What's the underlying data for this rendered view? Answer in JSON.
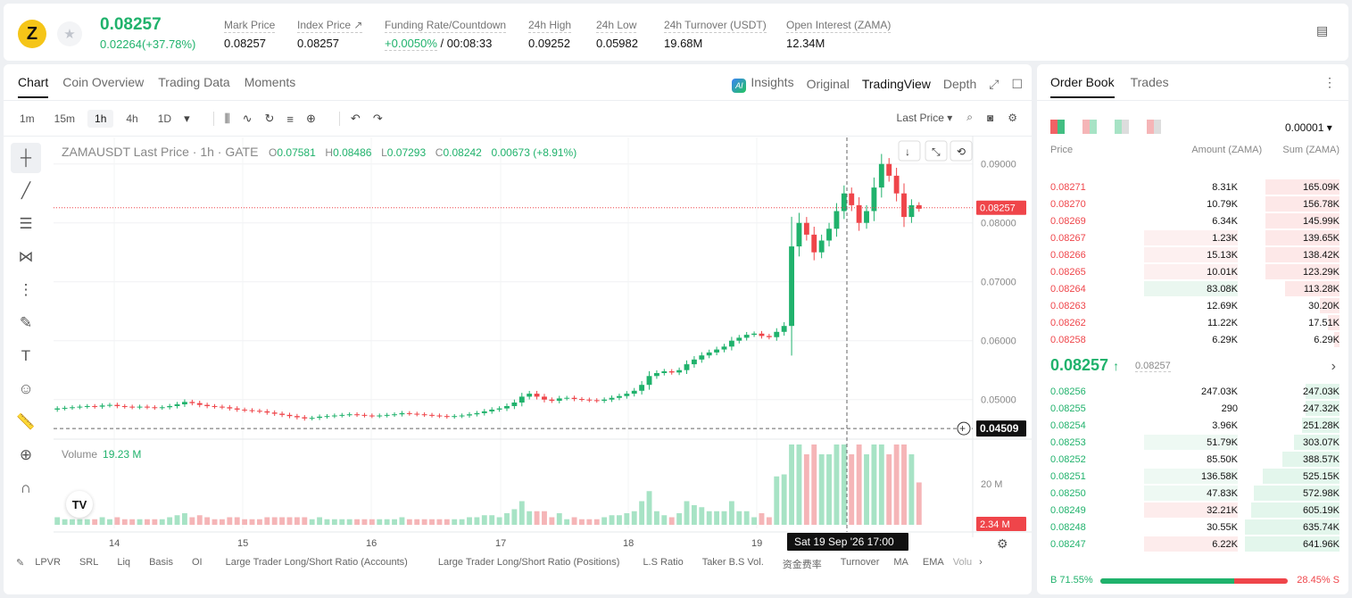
{
  "header": {
    "logo_letter": "Z",
    "last_price": "0.08257",
    "change": "0.02264(+37.78%)",
    "stats": [
      {
        "label": "Mark Price",
        "value": "0.08257"
      },
      {
        "label": "Index Price ↗",
        "value": "0.08257"
      },
      {
        "label": "Funding Rate/Countdown",
        "value_green": "+0.0050%",
        "value": " / 00:08:33"
      },
      {
        "label": "24h High",
        "value": "0.09252"
      },
      {
        "label": "24h Low",
        "value": "0.05982"
      },
      {
        "label": "24h Turnover (USDT)",
        "value": "19.68M"
      },
      {
        "label": "Open Interest (ZAMA)",
        "value": "12.34M"
      }
    ]
  },
  "chart_tabs": [
    "Chart",
    "Coin Overview",
    "Trading Data",
    "Moments"
  ],
  "view_options": [
    "Insights",
    "Original",
    "TradingView",
    "Depth"
  ],
  "timeframes": [
    "1m",
    "15m",
    "1h",
    "4h",
    "1D"
  ],
  "price_type": "Last Price",
  "legend": {
    "title": "ZAMAUSDT Last Price · 1h · GATE",
    "o": "0.07581",
    "h": "0.08486",
    "l": "0.07293",
    "c": "0.08242",
    "chg": "0.00673 (+8.91%)"
  },
  "volume": {
    "label": "Volume",
    "value": "19.23 M",
    "axis_label": "20 M",
    "last_tag": "2.34 M"
  },
  "crosshair": {
    "price": "0.04509",
    "time": "Sat 19 Sep '26    17:00"
  },
  "current_price_tag": "0.08257",
  "bottom_indicators": [
    "LPVR",
    "SRL",
    "Liq",
    "Basis",
    "OI",
    "Large Trader Long/Short Ratio (Accounts)",
    "Large Trader Long/Short Ratio (Positions)",
    "L.S Ratio",
    "Taker B.S Vol.",
    "资金费率",
    "Turnover",
    "MA",
    "EMA",
    "Volu"
  ],
  "chart_data": {
    "type": "candlestick",
    "title": "ZAMAUSDT Last Price · 1h · GATE",
    "x_ticks": [
      "14",
      "15",
      "16",
      "17",
      "18",
      "19"
    ],
    "y_ticks": [
      "0.09000",
      "0.08000",
      "0.07000",
      "0.06000",
      "0.05000"
    ],
    "ylim": [
      0.0445,
      0.0945
    ],
    "close_series": [
      0.0485,
      0.0486,
      0.0487,
      0.0488,
      0.0489,
      0.0488,
      0.049,
      0.0491,
      0.0489,
      0.0488,
      0.0487,
      0.0488,
      0.0487,
      0.0486,
      0.0487,
      0.0489,
      0.0492,
      0.0496,
      0.0494,
      0.0491,
      0.0489,
      0.0488,
      0.0487,
      0.0485,
      0.0483,
      0.0482,
      0.0481,
      0.048,
      0.0478,
      0.0476,
      0.0474,
      0.0472,
      0.047,
      0.0468,
      0.0469,
      0.0471,
      0.0472,
      0.0473,
      0.0474,
      0.0475,
      0.0474,
      0.0473,
      0.0472,
      0.0473,
      0.0474,
      0.0475,
      0.0477,
      0.0476,
      0.0475,
      0.0474,
      0.0473,
      0.0472,
      0.0471,
      0.0472,
      0.0473,
      0.0475,
      0.0477,
      0.048,
      0.0483,
      0.0485,
      0.0489,
      0.0495,
      0.0505,
      0.051,
      0.0505,
      0.05,
      0.0498,
      0.0502,
      0.0503,
      0.0501,
      0.05,
      0.0499,
      0.0498,
      0.05,
      0.0503,
      0.0506,
      0.051,
      0.0515,
      0.0525,
      0.054,
      0.0545,
      0.0548,
      0.0546,
      0.055,
      0.056,
      0.0568,
      0.0575,
      0.058,
      0.0585,
      0.059,
      0.06,
      0.0605,
      0.061,
      0.0612,
      0.0608,
      0.0606,
      0.0615,
      0.0625,
      0.076,
      0.08,
      0.078,
      0.075,
      0.077,
      0.079,
      0.082,
      0.085,
      0.083,
      0.08,
      0.082,
      0.086,
      0.09,
      0.088,
      0.085,
      0.081,
      0.083,
      0.0824
    ]
  },
  "order_book": {
    "tabs": [
      "Order Book",
      "Trades"
    ],
    "precision": "0.00001",
    "columns": [
      "Price",
      "Amount (ZAMA)",
      "Sum (ZAMA)"
    ],
    "asks": [
      {
        "price": "0.08271",
        "amount": "8.31K",
        "sum": "165.09K",
        "sum_pct": 26
      },
      {
        "price": "0.08270",
        "amount": "10.79K",
        "sum": "156.78K",
        "sum_pct": 26
      },
      {
        "price": "0.08269",
        "amount": "6.34K",
        "sum": "145.99K",
        "sum_pct": 26
      },
      {
        "price": "0.08267",
        "amount": "1.23K",
        "sum": "139.65K",
        "sum_pct": 26,
        "amount_pct": 25
      },
      {
        "price": "0.08266",
        "amount": "15.13K",
        "sum": "138.42K",
        "sum_pct": 26,
        "amount_pct": 25
      },
      {
        "price": "0.08265",
        "amount": "10.01K",
        "sum": "123.29K",
        "sum_pct": 26,
        "amount_pct": 25
      },
      {
        "price": "0.08264",
        "amount": "83.08K",
        "sum": "113.28K",
        "sum_pct": 19,
        "amount_pct": 35,
        "amount_green": true
      },
      {
        "price": "0.08263",
        "amount": "12.69K",
        "sum": "30.20K",
        "sum_pct": 7
      },
      {
        "price": "0.08262",
        "amount": "11.22K",
        "sum": "17.51K",
        "sum_pct": 4
      },
      {
        "price": "0.08258",
        "amount": "6.29K",
        "sum": "6.29K",
        "sum_pct": 2
      }
    ],
    "mid_price": "0.08257",
    "mid_arrow": "↑",
    "mid_sub": "0.08257",
    "bids": [
      {
        "price": "0.08256",
        "amount": "247.03K",
        "sum": "247.03K",
        "sum_pct": 12
      },
      {
        "price": "0.08255",
        "amount": "290",
        "sum": "247.32K",
        "sum_pct": 12
      },
      {
        "price": "0.08254",
        "amount": "3.96K",
        "sum": "251.28K",
        "sum_pct": 13
      },
      {
        "price": "0.08253",
        "amount": "51.79K",
        "sum": "303.07K",
        "sum_pct": 16,
        "amount_pct": 35
      },
      {
        "price": "0.08252",
        "amount": "85.50K",
        "sum": "388.57K",
        "sum_pct": 20
      },
      {
        "price": "0.08251",
        "amount": "136.58K",
        "sum": "525.15K",
        "sum_pct": 27,
        "amount_pct": 35
      },
      {
        "price": "0.08250",
        "amount": "47.83K",
        "sum": "572.98K",
        "sum_pct": 30,
        "amount_pct": 35
      },
      {
        "price": "0.08249",
        "amount": "32.21K",
        "sum": "605.19K",
        "sum_pct": 31,
        "amount_pct": 35,
        "amount_red": true
      },
      {
        "price": "0.08248",
        "amount": "30.55K",
        "sum": "635.74K",
        "sum_pct": 33
      },
      {
        "price": "0.08247",
        "amount": "6.22K",
        "sum": "641.96K",
        "sum_pct": 33,
        "amount_pct": 35,
        "amount_red": true
      }
    ],
    "buy_ratio": "B 71.55%",
    "sell_ratio": "28.45% S",
    "buy_pct": 71.55
  }
}
